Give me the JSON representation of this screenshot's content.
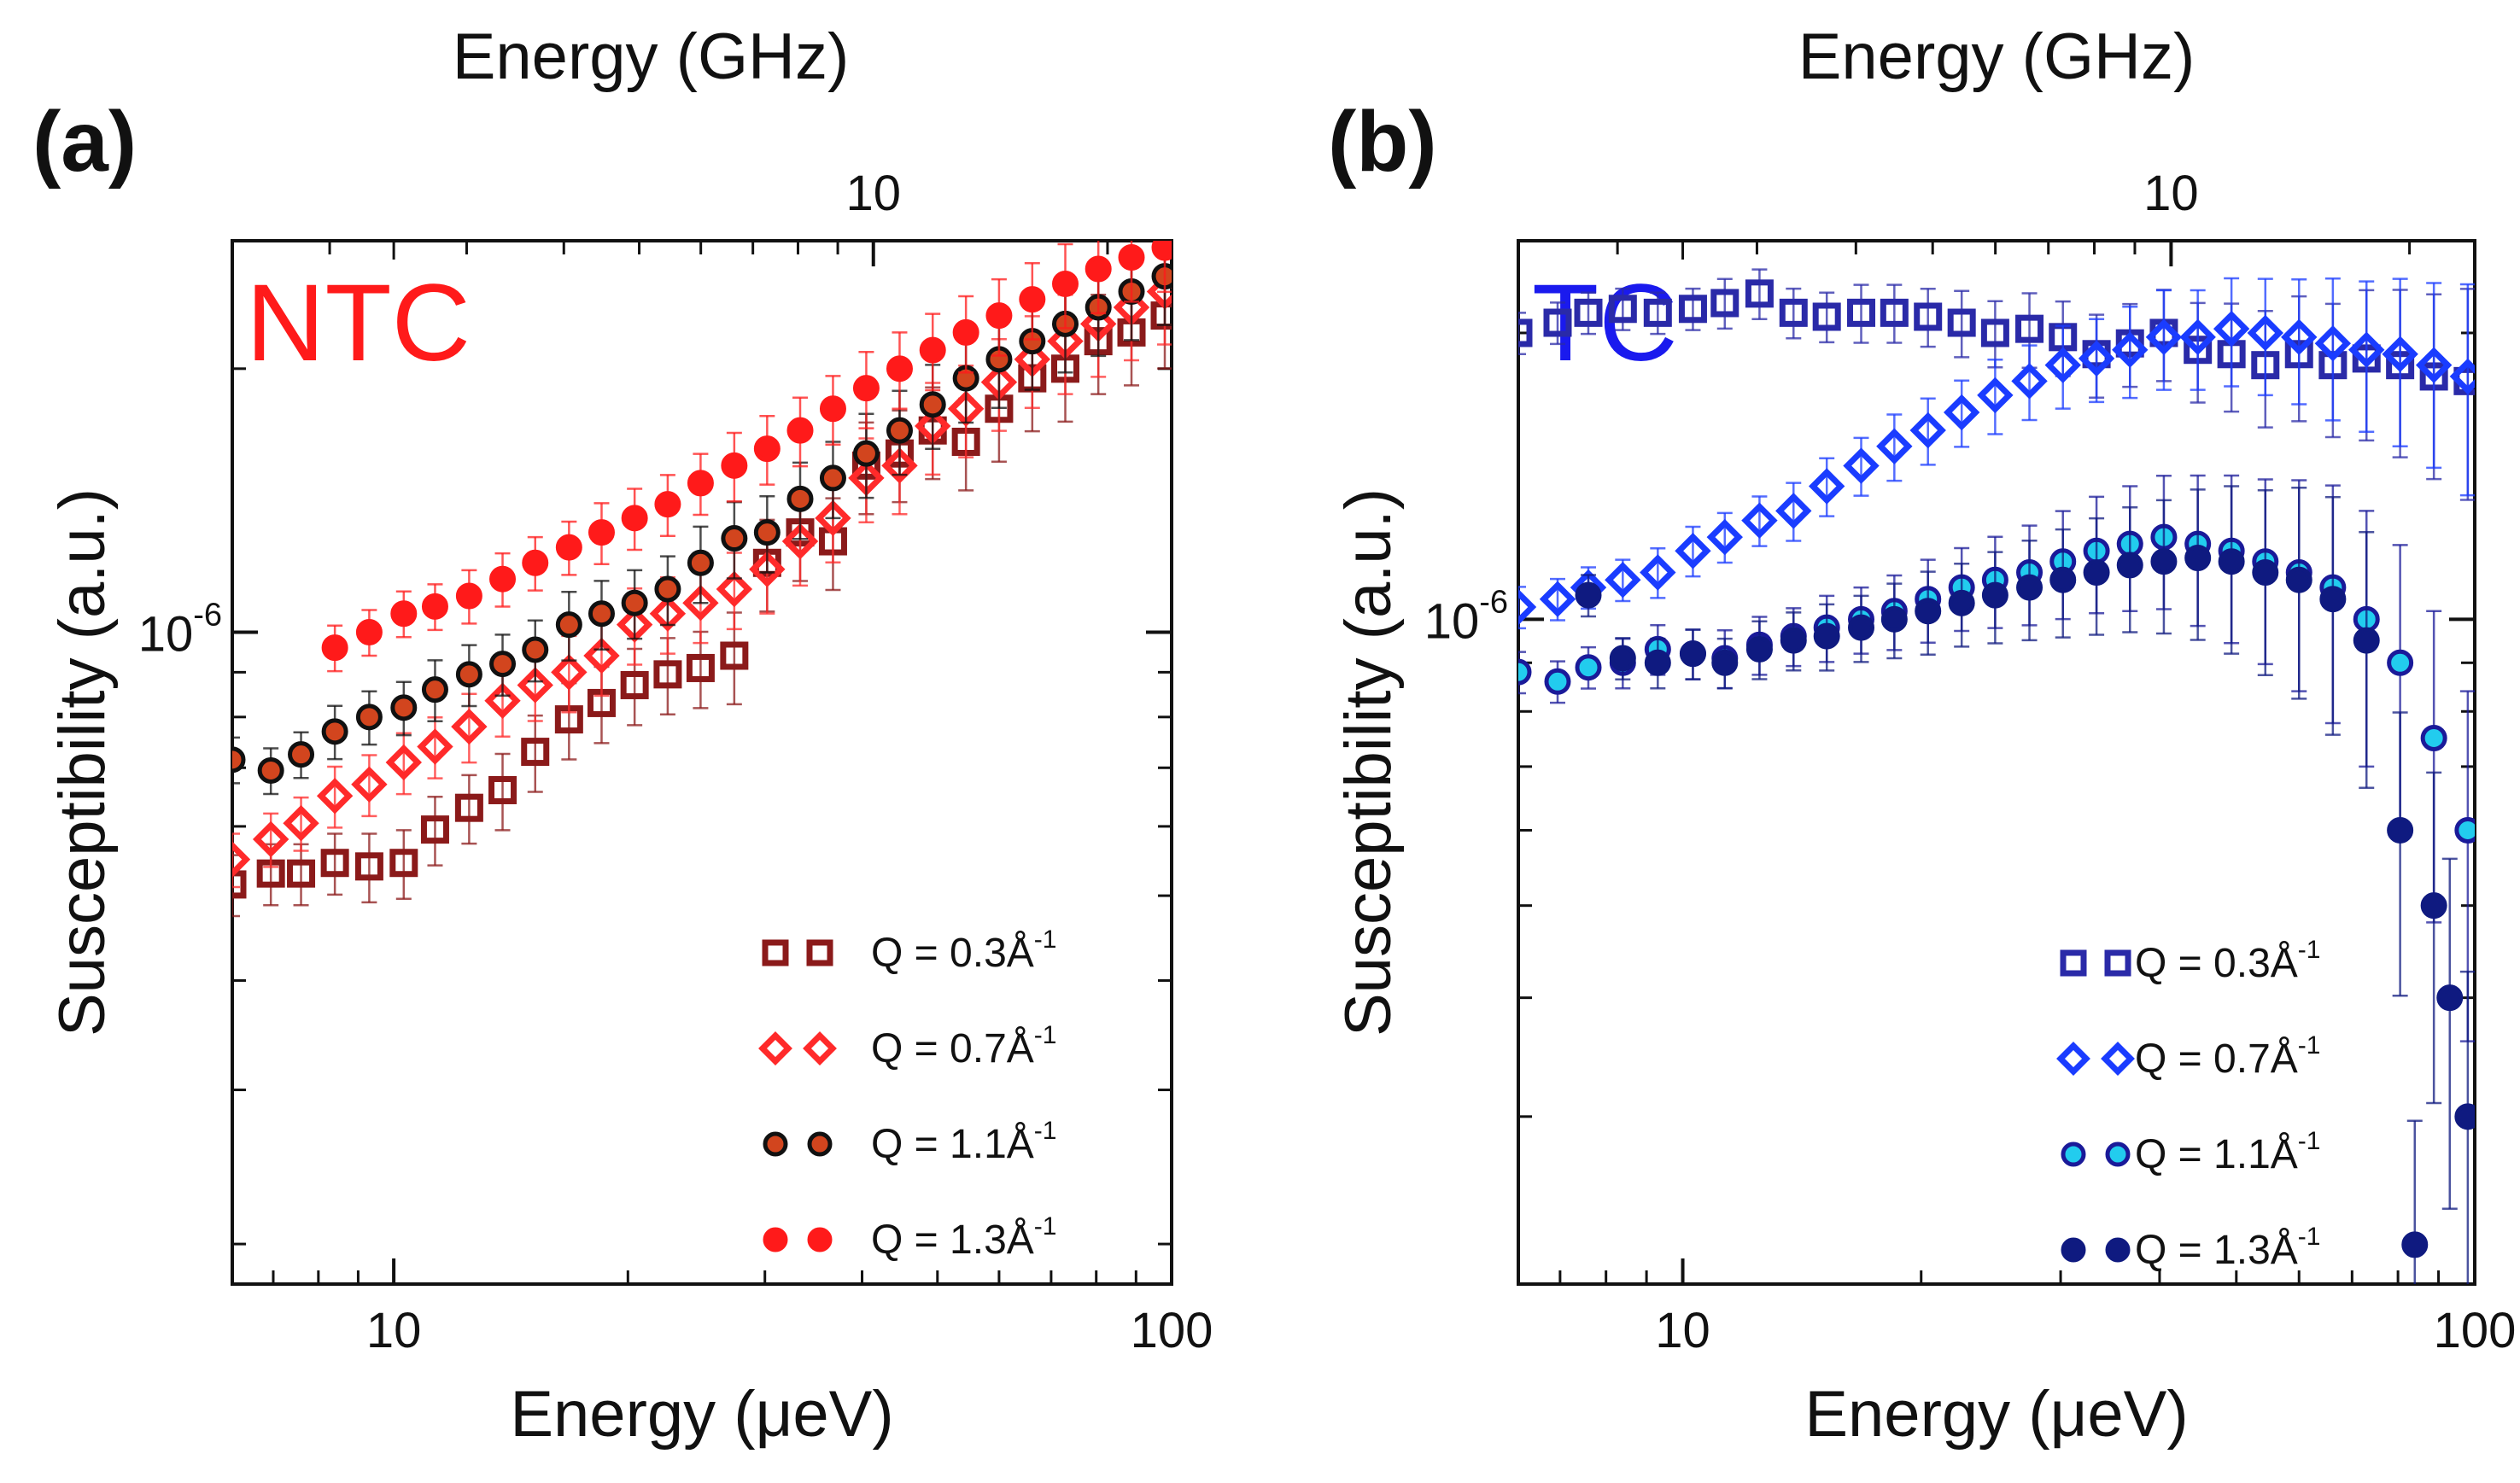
{
  "chart_data": [
    {
      "type": "scatter",
      "panel_label": "(a)",
      "annotation": {
        "text": "NTC",
        "color": "#ff1a1a"
      },
      "xlabel": "Energy (μeV)",
      "x2label": "Energy (GHz)",
      "ylabel": "Susceptibility (a.u.)",
      "xscale": "log",
      "yscale": "log",
      "xlim": [
        6.2,
        100
      ],
      "ylim": [
        1.8e-07,
        2.8e-06
      ],
      "xticks": [
        {
          "value": 10,
          "label": "10"
        },
        {
          "value": 100,
          "label": "100"
        }
      ],
      "x2ticks": [
        {
          "value": 41.36,
          "label": "10"
        }
      ],
      "yticks": [
        {
          "value": 1e-06,
          "base": "10",
          "exp": "-6"
        }
      ],
      "legend_position": "bottom-right",
      "series": [
        {
          "name": "Q = 0.3Å⁻¹",
          "label_main": "Q = 0.3Å",
          "label_exp": "-1",
          "marker": "square",
          "filled": false,
          "stroke": "#8b1a1a",
          "fill": "none",
          "x": [
            6.2,
            6.95,
            7.6,
            8.4,
            9.3,
            10.3,
            11.3,
            12.5,
            13.8,
            15.2,
            16.8,
            18.5,
            20.4,
            22.5,
            24.8,
            27.4,
            30.2,
            33.3,
            36.7,
            40.5,
            44.7,
            49.3,
            54.4,
            60.0,
            66.2,
            73.0,
            80.5,
            88.8,
            98.0
          ],
          "y": [
            5.15e-07,
            5.3e-07,
            5.3e-07,
            5.45e-07,
            5.4e-07,
            5.45e-07,
            5.95e-07,
            6.3e-07,
            6.6e-07,
            7.3e-07,
            7.95e-07,
            8.3e-07,
            8.7e-07,
            8.95e-07,
            9.1e-07,
            9.4e-07,
            1.2e-06,
            1.3e-06,
            1.27e-06,
            1.55e-06,
            1.6e-06,
            1.7e-06,
            1.65e-06,
            1.8e-06,
            1.95e-06,
            2e-06,
            2.15e-06,
            2.2e-06,
            2.3e-06
          ],
          "err": [
            0.08,
            0.08,
            0.08,
            0.08,
            0.09,
            0.09,
            0.09,
            0.09,
            0.1,
            0.1,
            0.1,
            0.1,
            0.1,
            0.1,
            0.1,
            0.12,
            0.12,
            0.12,
            0.12,
            0.12,
            0.12,
            0.12,
            0.12,
            0.13,
            0.13,
            0.13,
            0.13,
            0.13,
            0.13
          ]
        },
        {
          "name": "Q = 0.7Å⁻¹",
          "label_main": "Q = 0.7Å",
          "label_exp": "-1",
          "marker": "diamond",
          "filled": false,
          "stroke": "#ff2a2a",
          "fill": "none",
          "x": [
            6.2,
            6.95,
            7.6,
            8.4,
            9.3,
            10.3,
            11.3,
            12.5,
            13.8,
            15.2,
            16.8,
            18.5,
            20.4,
            22.5,
            24.8,
            27.4,
            30.2,
            33.3,
            36.7,
            40.5,
            44.7,
            49.3,
            54.4,
            60.0,
            66.2,
            73.0,
            80.5,
            88.8,
            98.0
          ],
          "y": [
            5.5e-07,
            5.8e-07,
            6.05e-07,
            6.5e-07,
            6.7e-07,
            7.1e-07,
            7.4e-07,
            7.8e-07,
            8.35e-07,
            8.7e-07,
            9e-07,
            9.4e-07,
            1.02e-06,
            1.05e-06,
            1.08e-06,
            1.12e-06,
            1.18e-06,
            1.27e-06,
            1.35e-06,
            1.5e-06,
            1.55e-06,
            1.72e-06,
            1.8e-06,
            1.93e-06,
            2.05e-06,
            2.15e-06,
            2.25e-06,
            2.35e-06,
            2.45e-06
          ],
          "err": [
            0.07,
            0.07,
            0.07,
            0.08,
            0.08,
            0.08,
            0.08,
            0.09,
            0.09,
            0.09,
            0.1,
            0.1,
            0.1,
            0.1,
            0.1,
            0.1,
            0.11,
            0.11,
            0.11,
            0.11,
            0.12,
            0.12,
            0.12,
            0.12,
            0.12,
            0.13,
            0.13,
            0.13,
            0.13
          ]
        },
        {
          "name": "Q = 1.1Å⁻¹",
          "label_main": "Q = 1.1Å",
          "label_exp": "-1",
          "marker": "circle",
          "filled": true,
          "stroke": "#111111",
          "fill": "#d2451e",
          "x": [
            6.2,
            6.95,
            7.6,
            8.4,
            9.3,
            10.3,
            11.3,
            12.5,
            13.8,
            15.2,
            16.8,
            18.5,
            20.4,
            22.5,
            24.8,
            27.4,
            30.2,
            33.3,
            36.7,
            40.5,
            44.7,
            49.3,
            54.4,
            60.0,
            66.2,
            73.0,
            80.5,
            88.8,
            98.0
          ],
          "y": [
            7.15e-07,
            6.95e-07,
            7.25e-07,
            7.7e-07,
            8e-07,
            8.2e-07,
            8.6e-07,
            8.95e-07,
            9.2e-07,
            9.55e-07,
            1.02e-06,
            1.05e-06,
            1.08e-06,
            1.12e-06,
            1.2e-06,
            1.28e-06,
            1.3e-06,
            1.42e-06,
            1.5e-06,
            1.6e-06,
            1.7e-06,
            1.82e-06,
            1.95e-06,
            2.05e-06,
            2.15e-06,
            2.25e-06,
            2.35e-06,
            2.45e-06,
            2.55e-06
          ],
          "err": [
            0.06,
            0.06,
            0.06,
            0.07,
            0.07,
            0.07,
            0.08,
            0.08,
            0.08,
            0.08,
            0.09,
            0.09,
            0.09,
            0.09,
            0.1,
            0.1,
            0.1,
            0.1,
            0.1,
            0.11,
            0.11,
            0.11,
            0.11,
            0.12,
            0.12,
            0.12,
            0.12,
            0.12,
            0.12
          ]
        },
        {
          "name": "Q = 1.3Å⁻¹",
          "label_main": "Q = 1.3Å",
          "label_exp": "-1",
          "marker": "circle",
          "filled": true,
          "stroke": "#ff1a1a",
          "fill": "#ff1a1a",
          "x": [
            8.4,
            9.3,
            10.3,
            11.3,
            12.5,
            13.8,
            15.2,
            16.8,
            18.5,
            20.4,
            22.5,
            24.8,
            27.4,
            30.2,
            33.3,
            36.7,
            40.5,
            44.7,
            49.3,
            54.4,
            60.0,
            66.2,
            73.0,
            80.5,
            88.8,
            98.0
          ],
          "y": [
            9.6e-07,
            1e-06,
            1.05e-06,
            1.07e-06,
            1.1e-06,
            1.15e-06,
            1.2e-06,
            1.25e-06,
            1.3e-06,
            1.35e-06,
            1.4e-06,
            1.48e-06,
            1.55e-06,
            1.62e-06,
            1.7e-06,
            1.8e-06,
            1.9e-06,
            2e-06,
            2.1e-06,
            2.2e-06,
            2.3e-06,
            2.4e-06,
            2.5e-06,
            2.6e-06,
            2.68e-06,
            2.75e-06
          ],
          "err": [
            0.06,
            0.06,
            0.06,
            0.06,
            0.07,
            0.07,
            0.07,
            0.07,
            0.08,
            0.08,
            0.08,
            0.08,
            0.09,
            0.09,
            0.09,
            0.09,
            0.1,
            0.1,
            0.1,
            0.1,
            0.1,
            0.1,
            0.11,
            0.11,
            0.11,
            0.11
          ]
        }
      ]
    },
    {
      "type": "scatter",
      "panel_label": "(b)",
      "annotation": {
        "text": "TC",
        "color": "#1a1aee"
      },
      "xlabel": "Energy (μeV)",
      "x2label": "Energy (GHz)",
      "ylabel": "Susceptibility (a.u.)",
      "xscale": "log",
      "yscale": "log",
      "xlim": [
        6.2,
        100
      ],
      "ylim": [
        2e-07,
        2.5e-06
      ],
      "xticks": [
        {
          "value": 10,
          "label": "10"
        },
        {
          "value": 100,
          "label": "100"
        }
      ],
      "x2ticks": [
        {
          "value": 41.36,
          "label": "10"
        }
      ],
      "yticks": [
        {
          "value": 1e-06,
          "base": "10",
          "exp": "-6"
        }
      ],
      "legend_position": "bottom-right",
      "series": [
        {
          "name": "Q = 0.3Å⁻¹",
          "label_main": "Q = 0.3Å",
          "label_exp": "-1",
          "marker": "square",
          "filled": false,
          "stroke": "#2a2aa8",
          "fill": "none",
          "x": [
            6.2,
            6.95,
            7.6,
            8.4,
            9.3,
            10.3,
            11.3,
            12.5,
            13.8,
            15.2,
            16.8,
            18.5,
            20.4,
            22.5,
            24.8,
            27.4,
            30.2,
            33.3,
            36.7,
            40.5,
            44.7,
            49.3,
            54.4,
            60.0,
            66.2,
            73.0,
            80.5,
            88.8,
            98.0
          ],
          "y": [
            2e-06,
            2.05e-06,
            2.1e-06,
            2.12e-06,
            2.1e-06,
            2.12e-06,
            2.15e-06,
            2.2e-06,
            2.1e-06,
            2.08e-06,
            2.1e-06,
            2.1e-06,
            2.08e-06,
            2.05e-06,
            2e-06,
            2.02e-06,
            1.98e-06,
            1.9e-06,
            1.95e-06,
            2e-06,
            1.92e-06,
            1.9e-06,
            1.85e-06,
            1.9e-06,
            1.85e-06,
            1.88e-06,
            1.85e-06,
            1.8e-06,
            1.78e-06
          ],
          "err": [
            0.05,
            0.05,
            0.05,
            0.05,
            0.05,
            0.05,
            0.06,
            0.06,
            0.06,
            0.06,
            0.07,
            0.07,
            0.07,
            0.08,
            0.08,
            0.09,
            0.09,
            0.1,
            0.1,
            0.11,
            0.12,
            0.13,
            0.14,
            0.15,
            0.16,
            0.18,
            0.2,
            0.22,
            0.25
          ]
        },
        {
          "name": "Q = 0.7Å⁻¹",
          "label_main": "Q = 0.7Å",
          "label_exp": "-1",
          "marker": "diamond",
          "filled": false,
          "stroke": "#1a3cff",
          "fill": "none",
          "x": [
            6.2,
            6.95,
            7.6,
            8.4,
            9.3,
            10.3,
            11.3,
            12.5,
            13.8,
            15.2,
            16.8,
            18.5,
            20.4,
            22.5,
            24.8,
            27.4,
            30.2,
            33.3,
            36.7,
            40.5,
            44.7,
            49.3,
            54.4,
            60.0,
            66.2,
            73.0,
            80.5,
            88.8,
            98.0
          ],
          "y": [
            1.03e-06,
            1.05e-06,
            1.08e-06,
            1.1e-06,
            1.12e-06,
            1.18e-06,
            1.22e-06,
            1.27e-06,
            1.3e-06,
            1.38e-06,
            1.45e-06,
            1.52e-06,
            1.58e-06,
            1.65e-06,
            1.72e-06,
            1.78e-06,
            1.85e-06,
            1.88e-06,
            1.92e-06,
            1.98e-06,
            1.98e-06,
            2.02e-06,
            2e-06,
            1.98e-06,
            1.95e-06,
            1.92e-06,
            1.9e-06,
            1.85e-06,
            1.8e-06
          ],
          "err": [
            0.05,
            0.05,
            0.05,
            0.05,
            0.06,
            0.06,
            0.06,
            0.06,
            0.07,
            0.07,
            0.07,
            0.08,
            0.08,
            0.08,
            0.09,
            0.09,
            0.1,
            0.1,
            0.11,
            0.12,
            0.12,
            0.13,
            0.14,
            0.15,
            0.17,
            0.18,
            0.2,
            0.22,
            0.25
          ]
        },
        {
          "name": "Q = 1.1Å⁻¹",
          "label_main": "Q = 1.1Å",
          "label_exp": "-1",
          "marker": "circle",
          "filled": true,
          "stroke": "#1a1a99",
          "fill": "#22ccee",
          "x": [
            6.2,
            6.95,
            7.6,
            8.4,
            9.3,
            10.3,
            11.3,
            12.5,
            13.8,
            15.2,
            16.8,
            18.5,
            20.4,
            22.5,
            24.8,
            27.4,
            30.2,
            33.3,
            36.7,
            40.5,
            44.7,
            49.3,
            54.4,
            60.0,
            66.2,
            73.0,
            80.5,
            88.8,
            98.0
          ],
          "y": [
            8.8e-07,
            8.6e-07,
            8.9e-07,
            9e-07,
            9.3e-07,
            9.2e-07,
            9.1e-07,
            9.4e-07,
            9.6e-07,
            9.8e-07,
            1e-06,
            1.02e-06,
            1.05e-06,
            1.08e-06,
            1.1e-06,
            1.12e-06,
            1.15e-06,
            1.18e-06,
            1.2e-06,
            1.22e-06,
            1.2e-06,
            1.18e-06,
            1.15e-06,
            1.12e-06,
            1.08e-06,
            1e-06,
            9e-07,
            7.5e-07,
            6e-07
          ],
          "err": [
            0.05,
            0.05,
            0.05,
            0.06,
            0.06,
            0.06,
            0.07,
            0.07,
            0.07,
            0.08,
            0.08,
            0.09,
            0.1,
            0.1,
            0.11,
            0.12,
            0.13,
            0.14,
            0.15,
            0.16,
            0.18,
            0.2,
            0.22,
            0.25,
            0.28,
            0.3,
            0.33,
            0.36,
            0.4
          ]
        },
        {
          "name": "Q = 1.3Å⁻¹",
          "label_main": "Q = 1.3Å",
          "label_exp": "-1",
          "marker": "circle",
          "filled": true,
          "stroke": "#0f1a80",
          "fill": "#0f1a80",
          "x": [
            7.6,
            8.4,
            9.3,
            10.3,
            11.3,
            12.5,
            13.8,
            15.2,
            16.8,
            18.5,
            20.4,
            22.5,
            24.8,
            27.4,
            30.2,
            33.3,
            36.7,
            40.5,
            44.7,
            49.3,
            54.4,
            60.0,
            66.2,
            73.0,
            80.5,
            84.0,
            88.8,
            93.0,
            98.0
          ],
          "y": [
            1.06e-06,
            9.1e-07,
            9e-07,
            9.2e-07,
            9e-07,
            9.3e-07,
            9.5e-07,
            9.6e-07,
            9.8e-07,
            1e-06,
            1.02e-06,
            1.04e-06,
            1.06e-06,
            1.08e-06,
            1.1e-06,
            1.12e-06,
            1.14e-06,
            1.15e-06,
            1.16e-06,
            1.15e-06,
            1.12e-06,
            1.1e-06,
            1.05e-06,
            9.5e-07,
            6e-07,
            2.2e-07,
            5e-07,
            4e-07,
            3e-07
          ],
          "err": [
            0.05,
            0.05,
            0.06,
            0.06,
            0.06,
            0.07,
            0.07,
            0.08,
            0.08,
            0.09,
            0.1,
            0.1,
            0.11,
            0.12,
            0.13,
            0.14,
            0.15,
            0.16,
            0.18,
            0.2,
            0.22,
            0.25,
            0.28,
            0.3,
            0.33,
            0.35,
            0.38,
            0.4,
            0.42
          ]
        }
      ]
    }
  ]
}
